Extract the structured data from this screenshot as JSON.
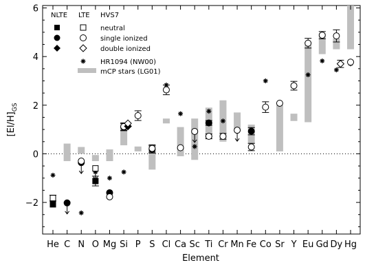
{
  "chart_data": {
    "type": "scatter",
    "xlabel": "Element",
    "ylabel": "[El/H]",
    "ylabel_sub": "GS",
    "ylim": [
      -3.3,
      6.1
    ],
    "yticks": [
      -2,
      0,
      2,
      4,
      6
    ],
    "reference_line": {
      "y": 0,
      "style": "dotted"
    },
    "categories": [
      "He",
      "C",
      "N",
      "O",
      "Mg",
      "Si",
      "P",
      "S",
      "Cl",
      "Ca",
      "Sc",
      "Ti",
      "Cr",
      "Mn",
      "Fe",
      "Co",
      "Sr",
      "Y",
      "Eu",
      "Gd",
      "Dy",
      "Hg"
    ],
    "legend": {
      "col_nlte": "NLTE",
      "col_lte": "LTE",
      "col_star": "HVS7",
      "neutral": "neutral",
      "single": "single ionized",
      "double": "double ionized",
      "hr1094": "HR1094 (NW00)",
      "mcp": "mCP stars (LG01)"
    },
    "mcp_ranges": [
      {
        "x": "C",
        "low": -0.3,
        "high": 0.42
      },
      {
        "x": "N",
        "low": 0.0,
        "high": 0.28
      },
      {
        "x": "O",
        "low": -0.3,
        "high": -0.05
      },
      {
        "x": "Mg",
        "low": -0.3,
        "high": 0.18
      },
      {
        "x": "Si",
        "low": 0.35,
        "high": 1.25
      },
      {
        "x": "P",
        "low": 0.1,
        "high": 0.3
      },
      {
        "x": "S",
        "low": -0.65,
        "high": 0.35
      },
      {
        "x": "Cl",
        "low": 1.25,
        "high": 1.45
      },
      {
        "x": "Ca",
        "low": -0.1,
        "high": 1.1
      },
      {
        "x": "Sc",
        "low": -0.25,
        "high": 1.45
      },
      {
        "x": "Ti",
        "low": 0.6,
        "high": 1.9
      },
      {
        "x": "Cr",
        "low": 0.5,
        "high": 2.2
      },
      {
        "x": "Mn",
        "low": 1.0,
        "high": 1.7
      },
      {
        "x": "Fe",
        "low": 0.4,
        "high": 1.2
      },
      {
        "x": "Sr",
        "low": 0.1,
        "high": 2.0
      },
      {
        "x": "Y",
        "low": 1.35,
        "high": 1.65
      },
      {
        "x": "Eu",
        "low": 1.3,
        "high": 4.5
      },
      {
        "x": "Gd",
        "low": 4.1,
        "high": 4.95
      },
      {
        "x": "Dy",
        "low": 4.3,
        "high": 4.75
      },
      {
        "x": "Hg",
        "low": 4.3,
        "high": 6.1
      }
    ],
    "hr1094": [
      {
        "x": "He",
        "y": -0.88
      },
      {
        "x": "N",
        "y": -2.43
      },
      {
        "x": "O",
        "y": -0.75
      },
      {
        "x": "Mg",
        "y": -1.0
      },
      {
        "x": "Si",
        "y": -0.75
      },
      {
        "x": "Cl",
        "y": 2.83
      },
      {
        "x": "Ca",
        "y": 1.65
      },
      {
        "x": "Sc",
        "y": 0.3
      },
      {
        "x": "Ti",
        "y": 1.75
      },
      {
        "x": "Cr",
        "y": 1.35
      },
      {
        "x": "Co",
        "y": 3.0
      },
      {
        "x": "Eu",
        "y": 3.25
      },
      {
        "x": "Gd",
        "y": 3.82
      },
      {
        "x": "Dy",
        "y": 3.45
      },
      {
        "x": "Hg",
        "y": 3.7
      }
    ],
    "hvs7": [
      {
        "x": "He",
        "ion": "neutral",
        "nlte": true,
        "y": -2.08,
        "err": 0
      },
      {
        "x": "He",
        "ion": "neutral",
        "nlte": false,
        "y": -1.82,
        "err": 0.12
      },
      {
        "x": "C",
        "ion": "single",
        "nlte": true,
        "y": -2.02,
        "err": 0,
        "upper_limit": true
      },
      {
        "x": "N",
        "ion": "single",
        "nlte": true,
        "y": -0.36,
        "err": 0,
        "upper_limit": true
      },
      {
        "x": "N",
        "ion": "single",
        "nlte": false,
        "y": -0.3,
        "err": 0
      },
      {
        "x": "O",
        "ion": "neutral",
        "nlte": true,
        "y": -1.12,
        "err": 0.2
      },
      {
        "x": "O",
        "ion": "neutral",
        "nlte": false,
        "y": -0.6,
        "err": 0,
        "upper_limit": true
      },
      {
        "x": "Mg",
        "ion": "single",
        "nlte": true,
        "y": -1.6,
        "err": 0
      },
      {
        "x": "Mg",
        "ion": "single",
        "nlte": false,
        "y": -1.77,
        "err": 0
      },
      {
        "x": "Si",
        "ion": "single",
        "nlte": true,
        "y": 1.1,
        "err": 0.15
      },
      {
        "x": "Si",
        "ion": "single",
        "nlte": false,
        "y": 1.12,
        "err": 0.15
      },
      {
        "x": "Si",
        "ion": "double",
        "nlte": true,
        "y": 1.13,
        "err": 0
      },
      {
        "x": "Si",
        "ion": "double",
        "nlte": false,
        "y": 1.25,
        "err": 0
      },
      {
        "x": "P",
        "ion": "single",
        "nlte": false,
        "y": 1.57,
        "err": 0.2
      },
      {
        "x": "S",
        "ion": "single",
        "nlte": true,
        "y": 0.18,
        "err": 0.15
      },
      {
        "x": "S",
        "ion": "single",
        "nlte": false,
        "y": 0.22,
        "err": 0.15
      },
      {
        "x": "Cl",
        "ion": "single",
        "nlte": false,
        "y": 2.63,
        "err": 0.2
      },
      {
        "x": "Ca",
        "ion": "single",
        "nlte": false,
        "y": 0.25,
        "err": 0
      },
      {
        "x": "Sc",
        "ion": "single",
        "nlte": false,
        "y": 0.92,
        "err": 0,
        "upper_limit": true
      },
      {
        "x": "Ti",
        "ion": "single",
        "nlte": true,
        "y": 1.27,
        "err": 0.1
      },
      {
        "x": "Ti",
        "ion": "single",
        "nlte": false,
        "y": 0.72,
        "err": 0.1
      },
      {
        "x": "Cr",
        "ion": "single",
        "nlte": false,
        "y": 0.72,
        "err": 0.12
      },
      {
        "x": "Mn",
        "ion": "single",
        "nlte": false,
        "y": 0.97,
        "err": 0,
        "upper_limit": true
      },
      {
        "x": "Fe",
        "ion": "single",
        "nlte": true,
        "y": 0.93,
        "err": 0.15
      },
      {
        "x": "Fe",
        "ion": "single",
        "nlte": false,
        "y": 0.28,
        "err": 0.15
      },
      {
        "x": "Co",
        "ion": "single",
        "nlte": false,
        "y": 1.92,
        "err": 0.22
      },
      {
        "x": "Sr",
        "ion": "single",
        "nlte": false,
        "y": 2.08,
        "err": 0
      },
      {
        "x": "Y",
        "ion": "single",
        "nlte": false,
        "y": 2.8,
        "err": 0.18
      },
      {
        "x": "Eu",
        "ion": "single",
        "nlte": false,
        "y": 4.55,
        "err": 0.2
      },
      {
        "x": "Gd",
        "ion": "single",
        "nlte": false,
        "y": 4.88,
        "err": 0.15
      },
      {
        "x": "Dy",
        "ion": "single",
        "nlte": false,
        "y": 4.85,
        "err": 0.25
      },
      {
        "x": "Dy",
        "ion": "double",
        "nlte": false,
        "y": 3.7,
        "err": 0.15
      },
      {
        "x": "Hg",
        "ion": "single",
        "nlte": false,
        "y": 3.77,
        "err": 0
      }
    ]
  }
}
